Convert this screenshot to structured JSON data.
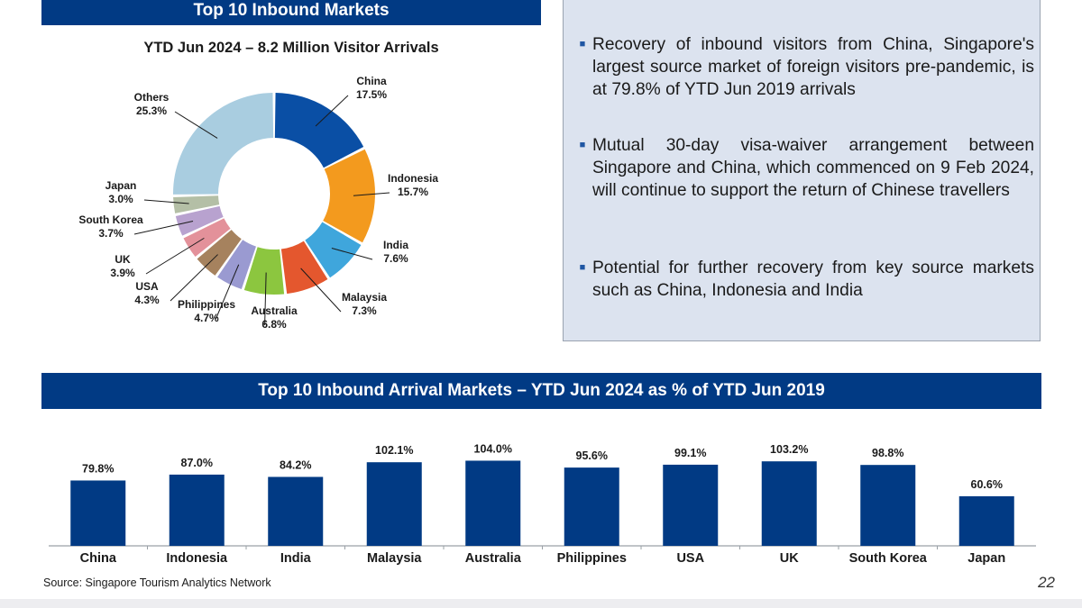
{
  "donut_panel": {
    "header": "Top 10 Inbound Markets",
    "subtitle": "YTD Jun 2024 – 8.2 Million Visitor Arrivals"
  },
  "bullets": [
    "Recovery of inbound visitors from China, Singapore's largest source market of foreign visitors pre-pandemic, is at 79.8% of YTD Jun 2019 arrivals",
    "Mutual 30-day visa-waiver arrangement between Singapore and China, which commenced on 9 Feb 2024, will continue to support the return of Chinese travellers",
    "Potential for further recovery from key source markets such as China, Indonesia and India"
  ],
  "bar_panel": {
    "header": "Top 10 Inbound Arrival Markets – YTD Jun 2024 as % of YTD Jun 2019"
  },
  "source": "Source: Singapore Tourism Analytics Network",
  "page_number": "22",
  "chart_data": [
    {
      "type": "pie",
      "style": "donut",
      "title": "YTD Jun 2024 – 8.2 Million Visitor Arrivals",
      "slices": [
        {
          "label": "China",
          "value": 17.5,
          "display": "17.5%",
          "color": "#0a4fa5"
        },
        {
          "label": "Indonesia",
          "value": 15.7,
          "display": "15.7%",
          "color": "#f39a1e"
        },
        {
          "label": "India",
          "value": 7.6,
          "display": "7.6%",
          "color": "#3fa6dc"
        },
        {
          "label": "Malaysia",
          "value": 7.3,
          "display": "7.3%",
          "color": "#e4572e"
        },
        {
          "label": "Australia",
          "value": 6.8,
          "display": "6.8%",
          "color": "#8cc63f"
        },
        {
          "label": "Philippines",
          "value": 4.7,
          "display": "4.7%",
          "color": "#9a9ad1"
        },
        {
          "label": "USA",
          "value": 4.3,
          "display": "4.3%",
          "color": "#a6825e"
        },
        {
          "label": "UK",
          "value": 3.9,
          "display": "3.9%",
          "color": "#e3919a"
        },
        {
          "label": "South Korea",
          "value": 3.7,
          "display": "3.7%",
          "color": "#b8a2cf"
        },
        {
          "label": "Japan",
          "value": 3.0,
          "display": "3.0%",
          "color": "#b4bfa6"
        },
        {
          "label": "Others",
          "value": 25.3,
          "display": "25.3%",
          "color": "#a9cde0"
        }
      ]
    },
    {
      "type": "bar",
      "title": "Top 10 Inbound Arrival Markets – YTD Jun 2024 as % of YTD Jun 2019",
      "categories": [
        "China",
        "Indonesia",
        "India",
        "Malaysia",
        "Australia",
        "Philippines",
        "USA",
        "UK",
        "South Korea",
        "Japan"
      ],
      "values": [
        79.8,
        87.0,
        84.2,
        102.1,
        104.0,
        95.6,
        99.1,
        103.2,
        98.8,
        60.6
      ],
      "value_labels": [
        "79.8%",
        "87.0%",
        "84.2%",
        "102.1%",
        "104.0%",
        "95.6%",
        "99.1%",
        "103.2%",
        "98.8%",
        "60.6%"
      ],
      "color": "#013a84",
      "ylim": [
        0,
        110
      ],
      "grid": false
    }
  ]
}
